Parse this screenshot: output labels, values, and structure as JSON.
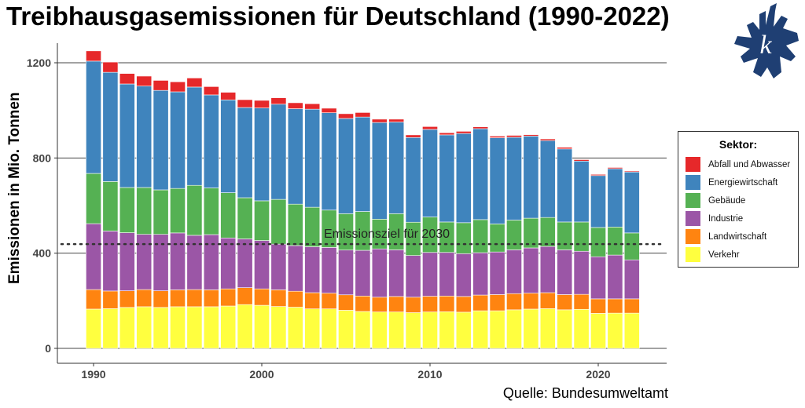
{
  "title": "Treibhausgasemissionen für Deutschland (1990-2022)",
  "source": "Quelle: Bundesumweltamt",
  "logo_text": "k",
  "colors": {
    "Abfall und Abwasser": "#e6282a",
    "Energiewirtschaft": "#3f84bd",
    "Gebäude": "#55b153",
    "Industrie": "#9b56a6",
    "Landwirtschaft": "#ff8410",
    "Verkehr": "#ffff3f",
    "logo": "#1f3f73"
  },
  "legend": {
    "title": "Sektor:",
    "items": [
      "Abfall und Abwasser",
      "Energiewirtschaft",
      "Gebäude",
      "Industrie",
      "Landwirtschaft",
      "Verkehr"
    ]
  },
  "chart_data": {
    "type": "bar",
    "stacked": true,
    "title": "Treibhausgasemissionen für Deutschland (1990-2022)",
    "xlabel": "",
    "ylabel": "Emissionen in Mio. Tonnen",
    "ylim": [
      0,
      1260
    ],
    "yticks": [
      0,
      400,
      800,
      1200
    ],
    "xticks": [
      1990,
      2000,
      2010,
      2020
    ],
    "grid": "horizontal major",
    "legend_position": "right",
    "x": [
      1990,
      1991,
      1992,
      1993,
      1994,
      1995,
      1996,
      1997,
      1998,
      1999,
      2000,
      2001,
      2002,
      2003,
      2004,
      2005,
      2006,
      2007,
      2008,
      2009,
      2010,
      2011,
      2012,
      2013,
      2014,
      2015,
      2016,
      2017,
      2018,
      2019,
      2020,
      2021,
      2022
    ],
    "series": [
      {
        "name": "Verkehr",
        "values": [
          165,
          167,
          172,
          175,
          172,
          175,
          175,
          175,
          178,
          184,
          181,
          176,
          173,
          166,
          166,
          160,
          155,
          153,
          153,
          150,
          153,
          154,
          152,
          158,
          158,
          162,
          165,
          167,
          162,
          164,
          147,
          148,
          148
        ]
      },
      {
        "name": "Landwirtschaft",
        "values": [
          82,
          74,
          70,
          72,
          70,
          71,
          72,
          71,
          72,
          71,
          69,
          70,
          67,
          68,
          66,
          65,
          65,
          62,
          65,
          65,
          66,
          66,
          66,
          66,
          68,
          68,
          67,
          67,
          64,
          63,
          61,
          60,
          60
        ]
      },
      {
        "name": "Industrie",
        "values": [
          277,
          252,
          244,
          232,
          237,
          239,
          228,
          232,
          214,
          205,
          203,
          192,
          192,
          193,
          192,
          188,
          192,
          203,
          196,
          175,
          184,
          183,
          180,
          178,
          179,
          184,
          190,
          194,
          188,
          181,
          177,
          184,
          164
        ]
      },
      {
        "name": "Gebäude",
        "values": [
          211,
          208,
          190,
          197,
          187,
          187,
          210,
          196,
          190,
          173,
          167,
          188,
          174,
          166,
          157,
          153,
          163,
          125,
          152,
          140,
          149,
          128,
          130,
          139,
          118,
          125,
          125,
          122,
          117,
          123,
          123,
          118,
          113
        ]
      },
      {
        "name": "Energiewirtschaft",
        "values": [
          472,
          459,
          435,
          426,
          418,
          406,
          413,
          391,
          390,
          379,
          390,
          400,
          401,
          412,
          409,
          400,
          397,
          406,
          385,
          356,
          368,
          366,
          375,
          382,
          362,
          348,
          345,
          323,
          307,
          256,
          218,
          245,
          256
        ]
      },
      {
        "name": "Abfall und Abwasser",
        "values": [
          43,
          43,
          44,
          42,
          42,
          42,
          38,
          35,
          32,
          33,
          32,
          27,
          25,
          23,
          19,
          20,
          19,
          14,
          12,
          11,
          12,
          9,
          9,
          8,
          7,
          8,
          6,
          7,
          7,
          6,
          5,
          5,
          4
        ]
      }
    ],
    "annotations": [
      {
        "type": "hline",
        "value": 438,
        "style": "dotted",
        "label": "Emissionsziel für 2030"
      }
    ]
  }
}
